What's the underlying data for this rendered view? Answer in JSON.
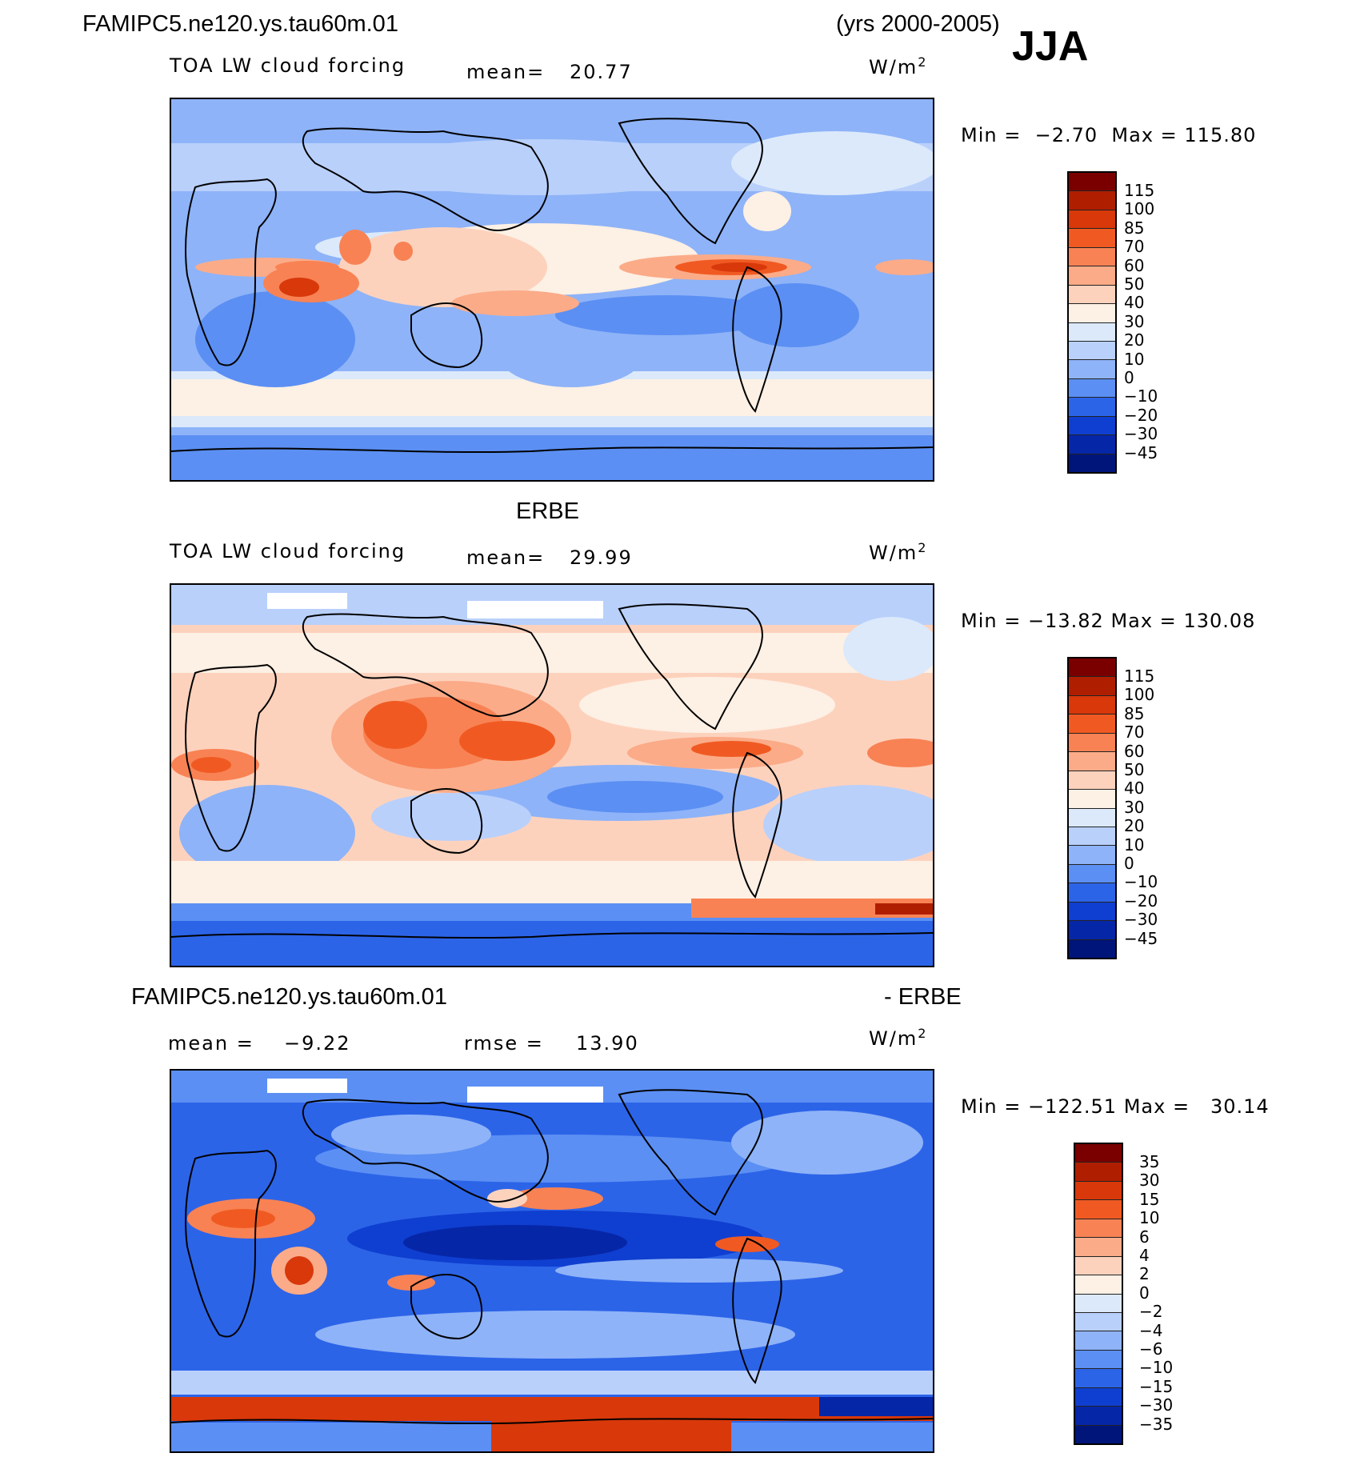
{
  "header": {
    "case_name": "FAMIPC5.ne120.ys.tau60m.01",
    "years": "(yrs 2000-2005)",
    "season": "JJA"
  },
  "panels": [
    {
      "title": "",
      "variable": "TOA LW cloud forcing",
      "mean_label": "mean=",
      "mean_value": "20.77",
      "units": "W/m",
      "units_exp": "2",
      "min_label": "Min =",
      "min_value": "-2.70",
      "max_label": "Max =",
      "max_value": "115.80",
      "colorbar": [
        "115",
        "100",
        "85",
        "70",
        "60",
        "50",
        "40",
        "30",
        "20",
        "10",
        "0",
        "-10",
        "-20",
        "-30",
        "-45"
      ]
    },
    {
      "title": "ERBE",
      "variable": "TOA LW cloud forcing",
      "mean_label": "mean=",
      "mean_value": "29.99",
      "units": "W/m",
      "units_exp": "2",
      "min_label": "Min =",
      "min_value": "-13.82",
      "max_label": "Max =",
      "max_value": "130.08",
      "colorbar": [
        "115",
        "100",
        "85",
        "70",
        "60",
        "50",
        "40",
        "30",
        "20",
        "10",
        "0",
        "-10",
        "-20",
        "-30",
        "-45"
      ]
    },
    {
      "title_left": "FAMIPC5.ne120.ys.tau60m.01",
      "title_right": "- ERBE",
      "mean_label": "mean =",
      "mean_value": "-9.22",
      "rmse_label": "rmse =",
      "rmse_value": "13.90",
      "units": "W/m",
      "units_exp": "2",
      "min_label": "Min =",
      "min_value": "-122.51",
      "max_label": "Max =",
      "max_value": "30.14",
      "colorbar": [
        "35",
        "30",
        "15",
        "10",
        "6",
        "4",
        "2",
        "0",
        "-2",
        "-4",
        "-6",
        "-10",
        "-15",
        "-30",
        "-35"
      ]
    }
  ],
  "colors": {
    "palette": [
      "#7a0000",
      "#b01e00",
      "#d8380a",
      "#f05a22",
      "#f88254",
      "#fbab88",
      "#fdd2bd",
      "#fdf0e4",
      "#dbe9fb",
      "#b9d0fb",
      "#8eb3f8",
      "#5b8ff3",
      "#2c64e8",
      "#0f3fd0",
      "#0626a8",
      "#00157a"
    ]
  }
}
